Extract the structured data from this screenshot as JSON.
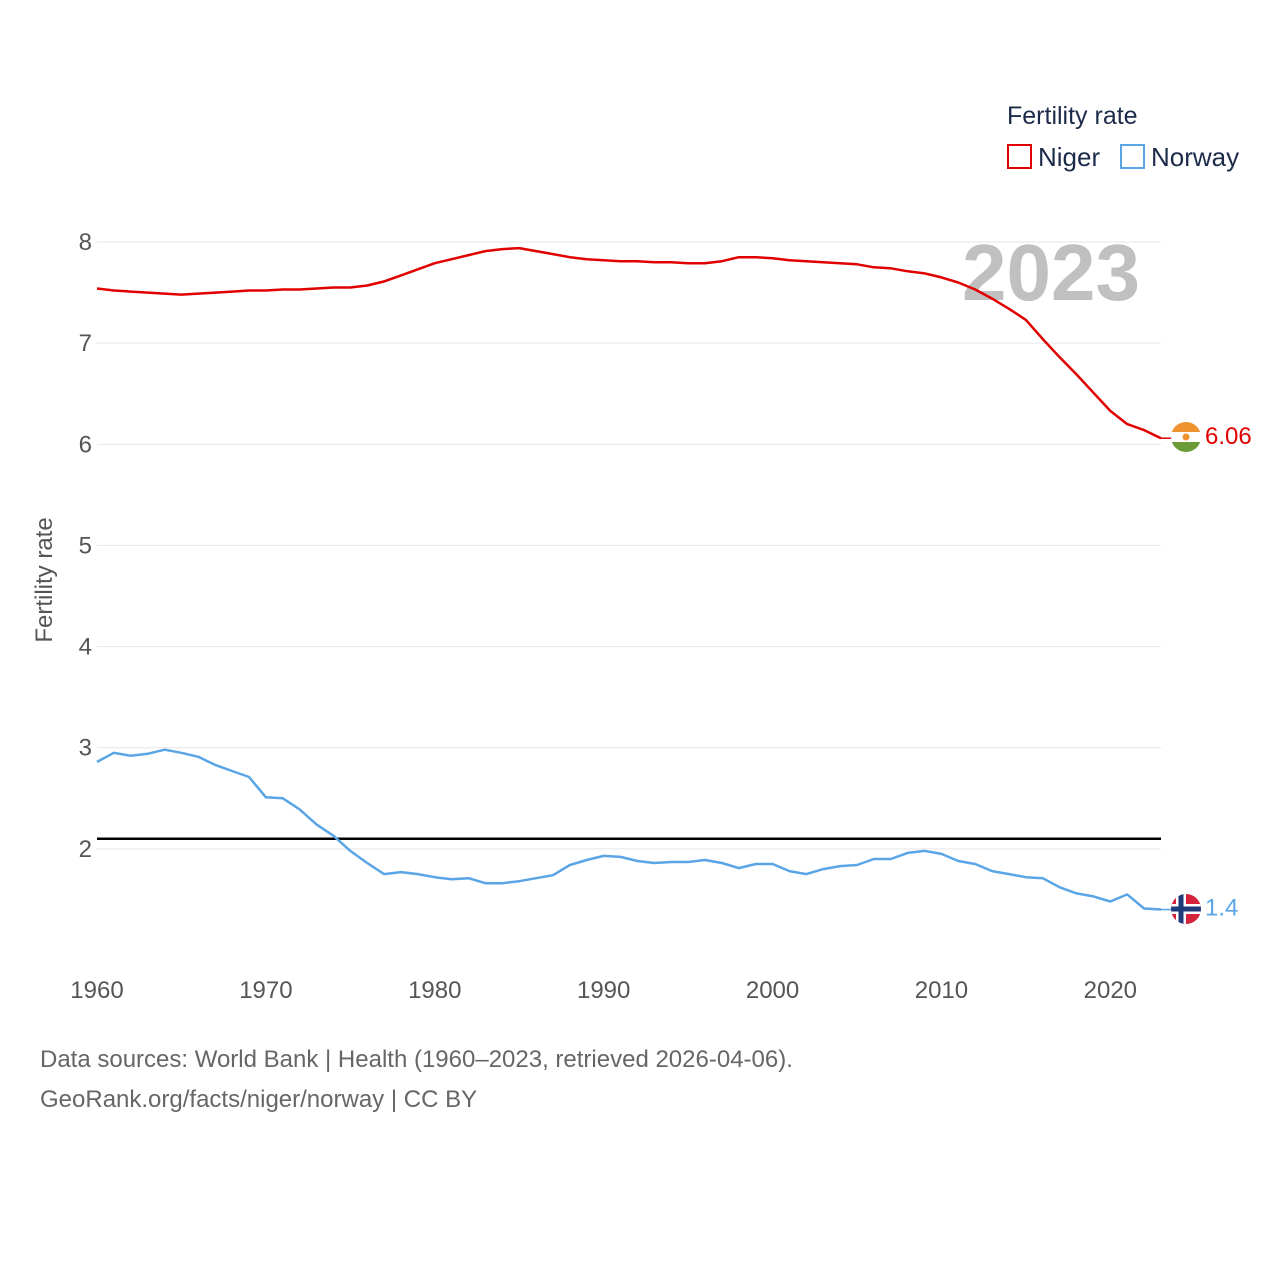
{
  "chart_data": {
    "type": "line",
    "title": "",
    "xlabel": "",
    "ylabel": "Fertility rate",
    "xlim": [
      1960,
      2023
    ],
    "ylim": [
      1,
      8
    ],
    "x_ticks": [
      1960,
      1970,
      1980,
      1990,
      2000,
      2010,
      2020
    ],
    "y_ticks": [
      2,
      3,
      4,
      5,
      6,
      7,
      8
    ],
    "grid": true,
    "legend": {
      "title": "Fertility rate",
      "position": "top-right"
    },
    "year_label": "2023",
    "reference_line": {
      "value": 2.1,
      "color": "#000000"
    },
    "x": [
      1960,
      1961,
      1962,
      1963,
      1964,
      1965,
      1966,
      1967,
      1968,
      1969,
      1970,
      1971,
      1972,
      1973,
      1974,
      1975,
      1976,
      1977,
      1978,
      1979,
      1980,
      1981,
      1982,
      1983,
      1984,
      1985,
      1986,
      1987,
      1988,
      1989,
      1990,
      1991,
      1992,
      1993,
      1994,
      1995,
      1996,
      1997,
      1998,
      1999,
      2000,
      2001,
      2002,
      2003,
      2004,
      2005,
      2006,
      2007,
      2008,
      2009,
      2010,
      2011,
      2012,
      2013,
      2014,
      2015,
      2016,
      2017,
      2018,
      2019,
      2020,
      2021,
      2022,
      2023
    ],
    "series": [
      {
        "name": "Niger",
        "color": "#e00000",
        "end_label": "6.06",
        "values": [
          7.54,
          7.52,
          7.51,
          7.5,
          7.49,
          7.48,
          7.49,
          7.5,
          7.51,
          7.52,
          7.52,
          7.53,
          7.53,
          7.54,
          7.55,
          7.55,
          7.57,
          7.61,
          7.67,
          7.73,
          7.79,
          7.83,
          7.87,
          7.91,
          7.93,
          7.94,
          7.91,
          7.88,
          7.85,
          7.83,
          7.82,
          7.81,
          7.81,
          7.8,
          7.8,
          7.79,
          7.79,
          7.81,
          7.85,
          7.85,
          7.84,
          7.82,
          7.81,
          7.8,
          7.79,
          7.78,
          7.75,
          7.74,
          7.71,
          7.69,
          7.65,
          7.6,
          7.53,
          7.44,
          7.34,
          7.23,
          7.04,
          6.86,
          6.69,
          6.51,
          6.33,
          6.2,
          6.14,
          6.06
        ]
      },
      {
        "name": "Norway",
        "color": "#5aa5e6",
        "end_label": "1.4",
        "values": [
          2.86,
          2.95,
          2.92,
          2.94,
          2.98,
          2.95,
          2.91,
          2.83,
          2.77,
          2.71,
          2.51,
          2.5,
          2.39,
          2.24,
          2.13,
          1.98,
          1.86,
          1.75,
          1.77,
          1.75,
          1.72,
          1.7,
          1.71,
          1.66,
          1.66,
          1.68,
          1.71,
          1.74,
          1.84,
          1.89,
          1.93,
          1.92,
          1.88,
          1.86,
          1.87,
          1.87,
          1.89,
          1.86,
          1.81,
          1.85,
          1.85,
          1.78,
          1.75,
          1.8,
          1.83,
          1.84,
          1.9,
          1.9,
          1.96,
          1.98,
          1.95,
          1.88,
          1.85,
          1.78,
          1.75,
          1.72,
          1.71,
          1.62,
          1.56,
          1.53,
          1.48,
          1.55,
          1.41,
          1.4
        ]
      }
    ]
  },
  "footer": {
    "line1": "Data sources: World Bank | Health (1960–2023, retrieved 2026-04-06).",
    "line2": "GeoRank.org/facts/niger/norway | CC BY"
  },
  "flags": {
    "niger": {
      "orange": "#f0922f",
      "white": "#ffffff",
      "green": "#6b9b37"
    },
    "norway": {
      "red": "#d5233b",
      "white": "#ffffff",
      "blue": "#1e3a7b"
    }
  },
  "colors": {
    "grid": "#e6e6e6",
    "tick": "#555555",
    "year": "#c0c0c0"
  }
}
